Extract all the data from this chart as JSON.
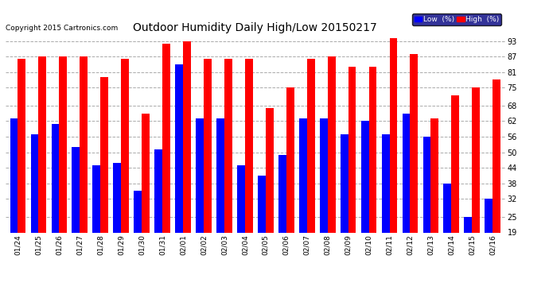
{
  "title": "Outdoor Humidity Daily High/Low 20150217",
  "copyright": "Copyright 2015 Cartronics.com",
  "legend_low": "Low  (%)",
  "legend_high": "High  (%)",
  "background_color": "#ffffff",
  "plot_bg_color": "#ffffff",
  "grid_color": "#aaaaaa",
  "bar_color_high": "#ff0000",
  "bar_color_low": "#0000ff",
  "yticks": [
    19,
    25,
    32,
    38,
    44,
    50,
    56,
    62,
    68,
    75,
    81,
    87,
    93
  ],
  "ylim": [
    19,
    95
  ],
  "dates": [
    "01/24",
    "01/25",
    "01/26",
    "01/27",
    "01/28",
    "01/29",
    "01/30",
    "01/31",
    "02/01",
    "02/02",
    "02/03",
    "02/04",
    "02/05",
    "02/06",
    "02/07",
    "02/08",
    "02/09",
    "02/10",
    "02/11",
    "02/12",
    "02/13",
    "02/14",
    "02/15",
    "02/16"
  ],
  "high_values": [
    86,
    87,
    87,
    87,
    79,
    86,
    65,
    92,
    93,
    86,
    86,
    86,
    67,
    75,
    86,
    87,
    83,
    83,
    94,
    88,
    63,
    72,
    75,
    78
  ],
  "low_values": [
    63,
    57,
    61,
    52,
    45,
    46,
    35,
    51,
    84,
    63,
    63,
    45,
    41,
    49,
    63,
    63,
    57,
    62,
    57,
    65,
    56,
    38,
    25,
    32
  ]
}
